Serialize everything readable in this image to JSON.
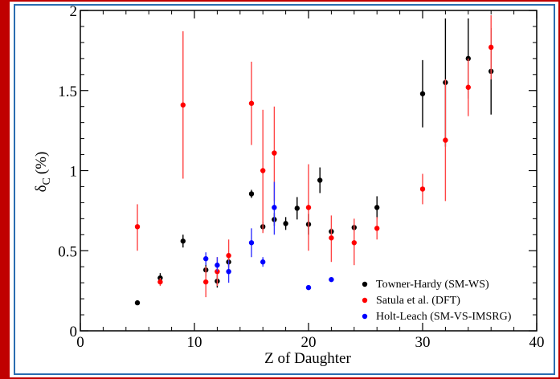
{
  "chart_data": {
    "type": "scatter",
    "xlabel": "Z of Daughter",
    "ylabel_main": "δ",
    "ylabel_sub": "C",
    "ylabel_unit": "(%)",
    "xlim": [
      0,
      40
    ],
    "ylim": [
      0,
      2
    ],
    "xticks": [
      "0",
      "10",
      "20",
      "30",
      "40"
    ],
    "yticks": [
      "0",
      "0.5",
      "1",
      "1.5",
      "2"
    ],
    "grid": false,
    "legend_position": "bottom-right",
    "series": [
      {
        "name": "Towner-Hardy (SM-WS)",
        "color": "#000000",
        "points": [
          {
            "x": 5,
            "y": 0.175,
            "lo": 0.165,
            "hi": 0.185
          },
          {
            "x": 7,
            "y": 0.33,
            "lo": 0.31,
            "hi": 0.36
          },
          {
            "x": 9,
            "y": 0.56,
            "lo": 0.52,
            "hi": 0.6
          },
          {
            "x": 11,
            "y": 0.38,
            "lo": 0.34,
            "hi": 0.42
          },
          {
            "x": 12,
            "y": 0.31,
            "lo": 0.27,
            "hi": 0.35
          },
          {
            "x": 13,
            "y": 0.43,
            "lo": 0.4,
            "hi": 0.46
          },
          {
            "x": 15,
            "y": 0.855,
            "lo": 0.83,
            "hi": 0.88
          },
          {
            "x": 16,
            "y": 0.65,
            "lo": 0.62,
            "hi": 0.68
          },
          {
            "x": 17,
            "y": 0.695,
            "lo": 0.655,
            "hi": 0.735
          },
          {
            "x": 18,
            "y": 0.67,
            "lo": 0.63,
            "hi": 0.71
          },
          {
            "x": 19,
            "y": 0.765,
            "lo": 0.695,
            "hi": 0.835
          },
          {
            "x": 20,
            "y": 0.665,
            "lo": 0.6,
            "hi": 0.73
          },
          {
            "x": 21,
            "y": 0.94,
            "lo": 0.86,
            "hi": 1.02
          },
          {
            "x": 22,
            "y": 0.62,
            "lo": 0.6,
            "hi": 0.64
          },
          {
            "x": 24,
            "y": 0.645,
            "lo": 0.625,
            "hi": 0.665
          },
          {
            "x": 26,
            "y": 0.77,
            "lo": 0.7,
            "hi": 0.84
          },
          {
            "x": 30,
            "y": 1.48,
            "lo": 1.27,
            "hi": 1.69
          },
          {
            "x": 32,
            "y": 1.55,
            "lo": 1.15,
            "hi": 1.95
          },
          {
            "x": 34,
            "y": 1.7,
            "lo": 1.45,
            "hi": 1.95
          },
          {
            "x": 36,
            "y": 1.62,
            "lo": 1.35,
            "hi": 1.89
          }
        ]
      },
      {
        "name": "Satula et al. (DFT)",
        "color": "#ff0000",
        "points": [
          {
            "x": 5,
            "y": 0.65,
            "lo": 0.5,
            "hi": 0.79
          },
          {
            "x": 7,
            "y": 0.305,
            "lo": 0.28,
            "hi": 0.33
          },
          {
            "x": 9,
            "y": 1.41,
            "lo": 0.95,
            "hi": 1.87
          },
          {
            "x": 11,
            "y": 0.305,
            "lo": 0.21,
            "hi": 0.4
          },
          {
            "x": 12,
            "y": 0.37,
            "lo": 0.28,
            "hi": 0.46
          },
          {
            "x": 13,
            "y": 0.47,
            "lo": 0.37,
            "hi": 0.57
          },
          {
            "x": 15,
            "y": 1.42,
            "lo": 1.16,
            "hi": 1.68
          },
          {
            "x": 16,
            "y": 1.0,
            "lo": 0.61,
            "hi": 1.38
          },
          {
            "x": 17,
            "y": 1.11,
            "lo": 0.81,
            "hi": 1.4
          },
          {
            "x": 20,
            "y": 0.77,
            "lo": 0.5,
            "hi": 1.04
          },
          {
            "x": 22,
            "y": 0.58,
            "lo": 0.43,
            "hi": 0.72
          },
          {
            "x": 24,
            "y": 0.55,
            "lo": 0.41,
            "hi": 0.7
          },
          {
            "x": 26,
            "y": 0.64,
            "lo": 0.57,
            "hi": 0.71
          },
          {
            "x": 30,
            "y": 0.885,
            "lo": 0.79,
            "hi": 0.98
          },
          {
            "x": 32,
            "y": 1.19,
            "lo": 0.81,
            "hi": 1.57
          },
          {
            "x": 34,
            "y": 1.52,
            "lo": 1.34,
            "hi": 1.7
          },
          {
            "x": 36,
            "y": 1.77,
            "lo": 1.57,
            "hi": 1.97
          }
        ]
      },
      {
        "name": "Holt-Leach (SM-VS-IMSRG)",
        "color": "#0000ff",
        "points": [
          {
            "x": 11,
            "y": 0.45,
            "lo": 0.41,
            "hi": 0.49
          },
          {
            "x": 12,
            "y": 0.41,
            "lo": 0.37,
            "hi": 0.46
          },
          {
            "x": 13,
            "y": 0.37,
            "lo": 0.3,
            "hi": 0.44
          },
          {
            "x": 15,
            "y": 0.55,
            "lo": 0.46,
            "hi": 0.64
          },
          {
            "x": 16,
            "y": 0.43,
            "lo": 0.4,
            "hi": 0.46
          },
          {
            "x": 17,
            "y": 0.77,
            "lo": 0.6,
            "hi": 0.93
          },
          {
            "x": 20,
            "y": 0.27,
            "lo": 0.26,
            "hi": 0.28
          },
          {
            "x": 22,
            "y": 0.32,
            "lo": 0.31,
            "hi": 0.33
          }
        ]
      }
    ]
  }
}
